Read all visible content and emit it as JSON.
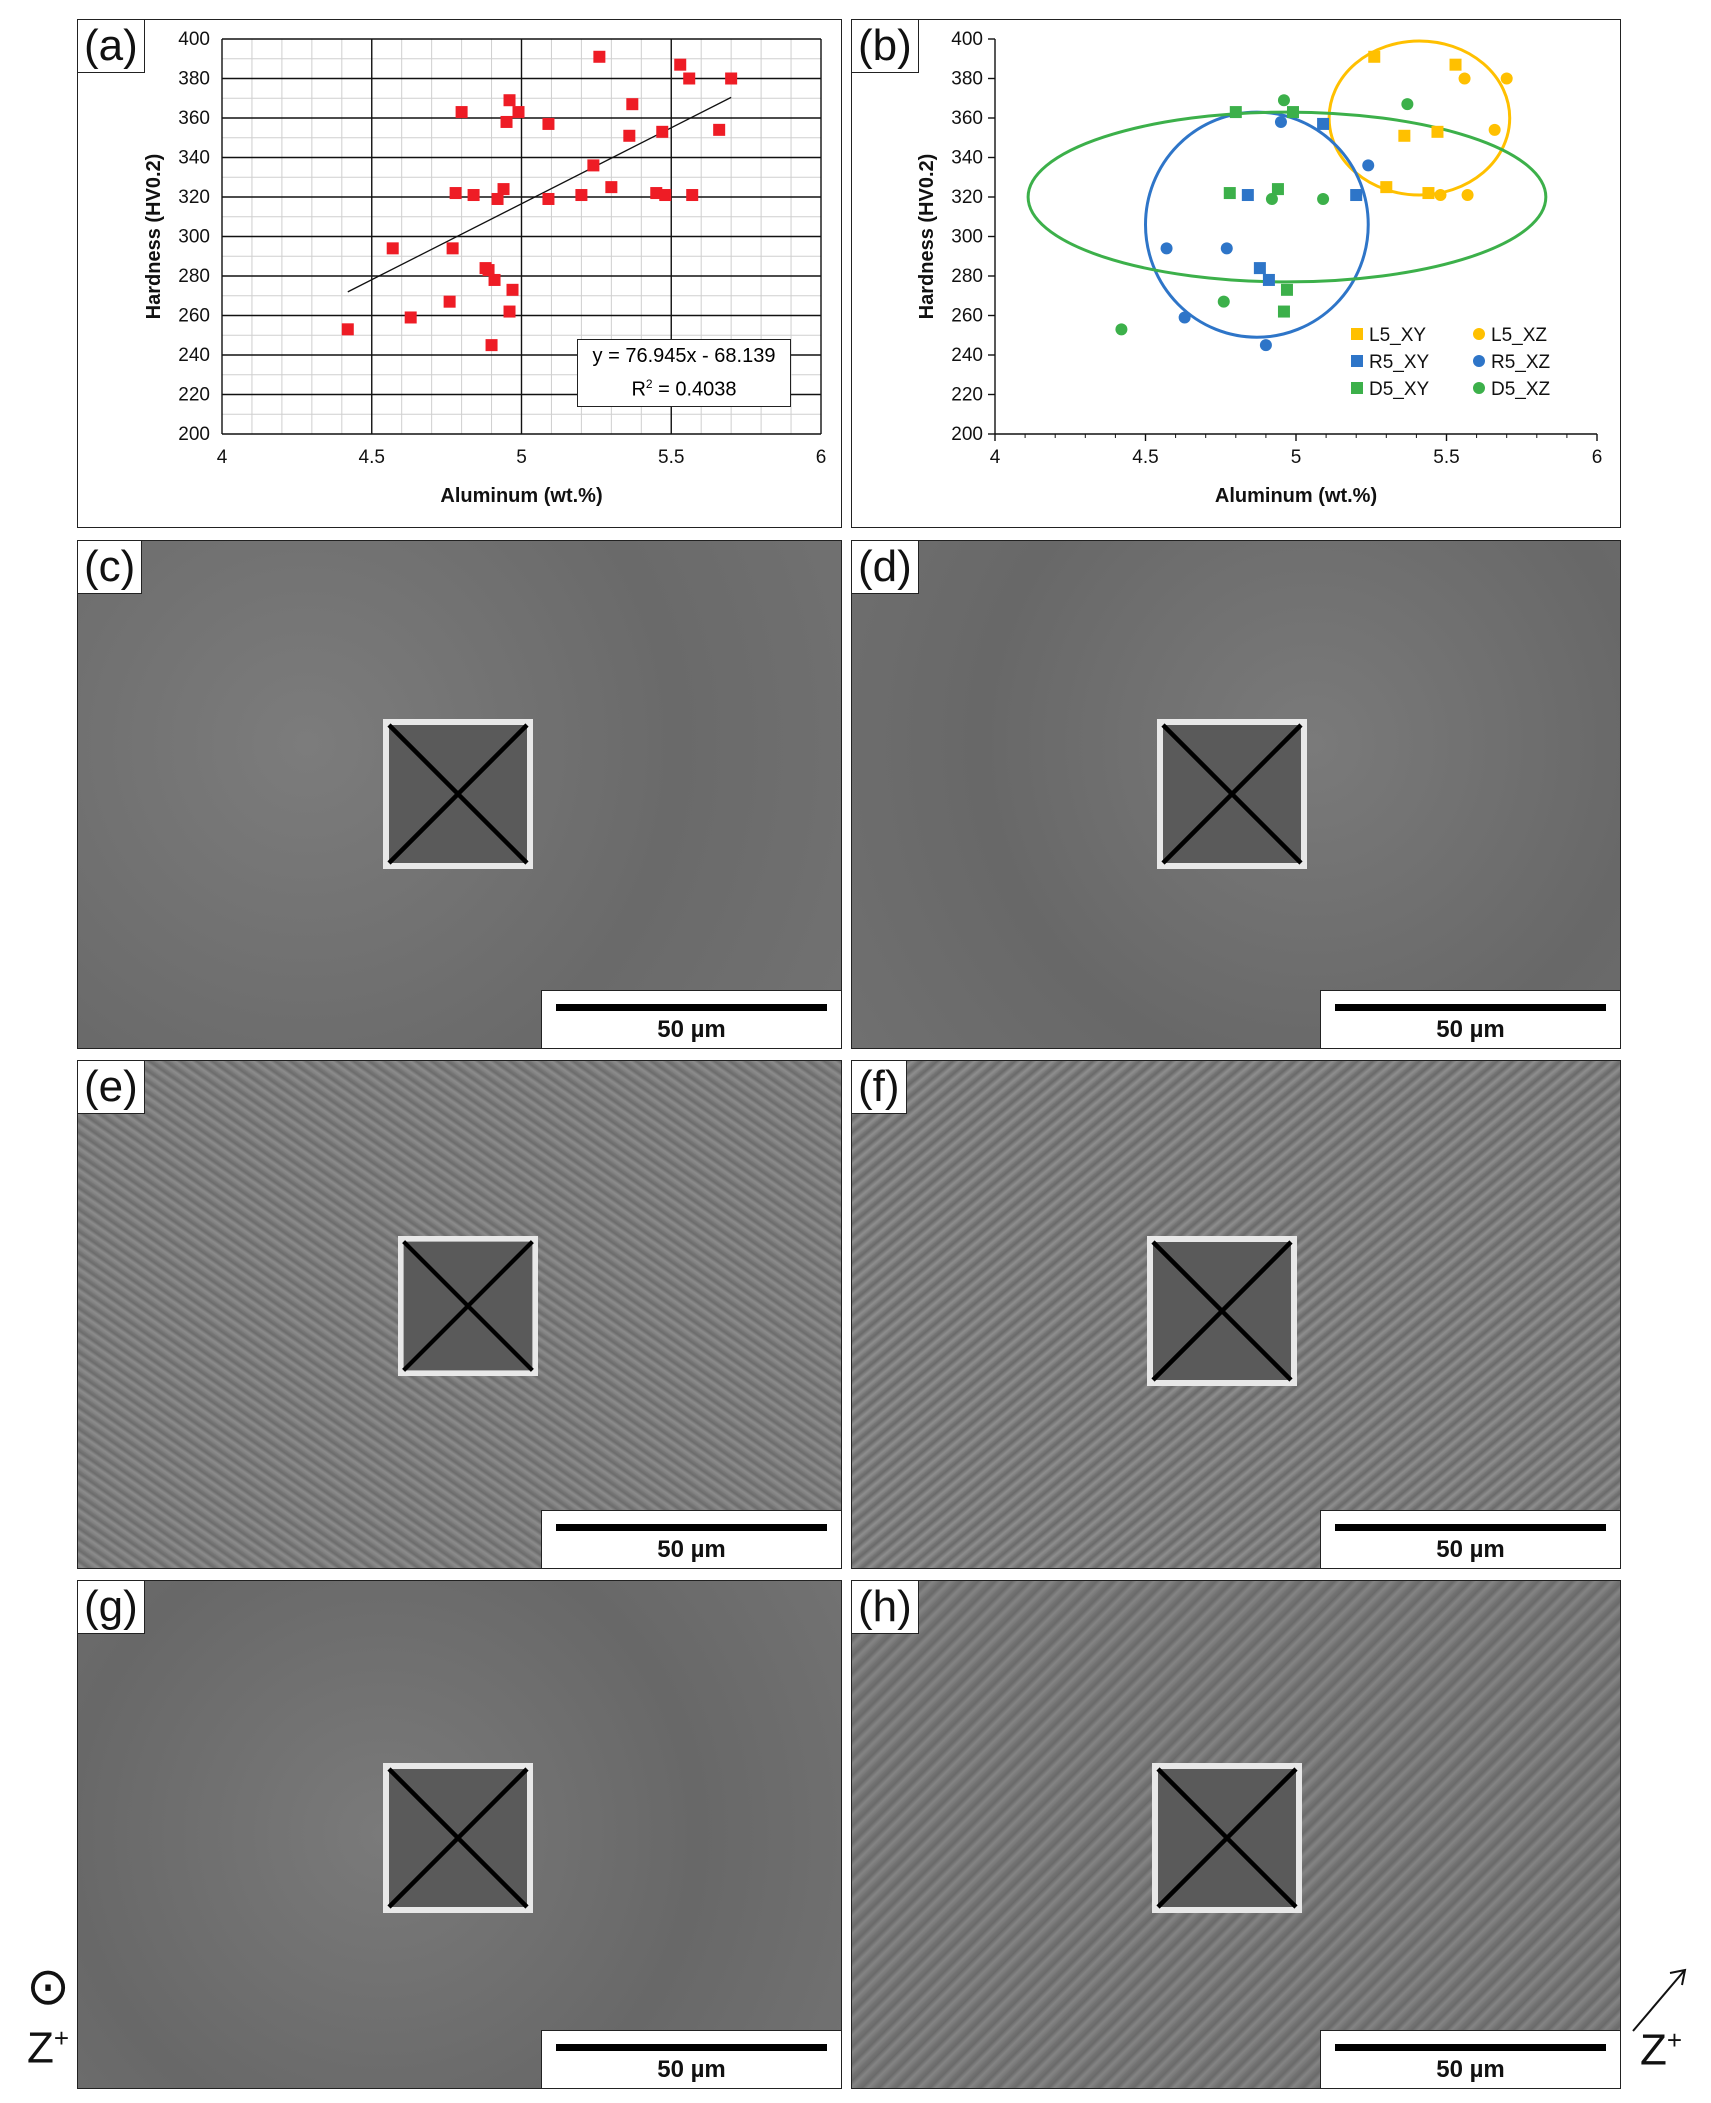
{
  "figure": {
    "panels": {
      "a": {
        "label": "(a)"
      },
      "b": {
        "label": "(b)"
      },
      "c": {
        "label": "(c)",
        "scale": "50 µm"
      },
      "d": {
        "label": "(d)",
        "scale": "50 µm"
      },
      "e": {
        "label": "(e)",
        "scale": "50 µm"
      },
      "f": {
        "label": "(f)",
        "scale": "50 µm"
      },
      "g": {
        "label": "(g)",
        "scale": "50 µm"
      },
      "h": {
        "label": "(h)",
        "scale": "50 µm"
      }
    },
    "direction_left": {
      "symbol": "⊙",
      "text": "Z",
      "sup": "+"
    },
    "direction_right": {
      "text": "Z",
      "sup": "+"
    },
    "regression": {
      "equation": "y = 76.945x - 68.139",
      "r2_label": "R",
      "r2_sup": "2",
      "r2_value": " = 0.4038"
    },
    "colors": {
      "red": "#ee1c25",
      "yellow": "#ffc000",
      "blue": "#2e75c8",
      "green": "#3cb04a"
    }
  },
  "chart_data": [
    {
      "type": "scatter",
      "panel": "(a)",
      "xlabel": "Aluminum (wt.%)",
      "ylabel": "Hardness (HV0.2)",
      "xlim": [
        4,
        6
      ],
      "ylim": [
        200,
        400
      ],
      "xticks": [
        4,
        4.5,
        5,
        5.5,
        6
      ],
      "yticks": [
        200,
        220,
        240,
        260,
        280,
        300,
        320,
        340,
        360,
        380,
        400
      ],
      "grid": true,
      "series": [
        {
          "points": [
            [
              4.42,
              253
            ],
            [
              4.57,
              294
            ],
            [
              4.63,
              259
            ],
            [
              4.76,
              267
            ],
            [
              4.77,
              294
            ],
            [
              4.78,
              322
            ],
            [
              4.8,
              363
            ],
            [
              4.84,
              321
            ],
            [
              4.88,
              284
            ],
            [
              4.89,
              283
            ],
            [
              4.9,
              245
            ],
            [
              4.91,
              278
            ],
            [
              4.92,
              319
            ],
            [
              4.94,
              324
            ],
            [
              4.95,
              358
            ],
            [
              4.96,
              262
            ],
            [
              4.96,
              369
            ],
            [
              4.97,
              273
            ],
            [
              4.99,
              363
            ],
            [
              5.09,
              357
            ],
            [
              5.09,
              319
            ],
            [
              5.2,
              321
            ],
            [
              5.24,
              336
            ],
            [
              5.26,
              391
            ],
            [
              5.3,
              325
            ],
            [
              5.36,
              351
            ],
            [
              5.37,
              367
            ],
            [
              5.45,
              322
            ],
            [
              5.47,
              353
            ],
            [
              5.48,
              321
            ],
            [
              5.53,
              387
            ],
            [
              5.56,
              380
            ],
            [
              5.57,
              321
            ],
            [
              5.66,
              354
            ],
            [
              5.7,
              380
            ]
          ]
        }
      ],
      "trendline": {
        "x": [
          4.42,
          5.7
        ],
        "slope": 76.945,
        "intercept": -68.139
      }
    },
    {
      "type": "scatter",
      "panel": "(b)",
      "xlabel": "Aluminum (wt.%)",
      "ylabel": "Hardness (HV0.2)",
      "xlim": [
        4,
        6
      ],
      "ylim": [
        200,
        400
      ],
      "xticks": [
        4,
        4.5,
        5,
        5.5,
        6
      ],
      "yticks": [
        200,
        220,
        240,
        260,
        280,
        300,
        320,
        340,
        360,
        380,
        400
      ],
      "grid": false,
      "legend_position": "bottom-right",
      "series": [
        {
          "name": "L5_XY",
          "color": "#ffc000",
          "marker": "square",
          "points": [
            [
              5.26,
              391
            ],
            [
              5.53,
              387
            ],
            [
              5.36,
              351
            ],
            [
              5.47,
              353
            ],
            [
              5.3,
              325
            ],
            [
              5.44,
              322
            ]
          ]
        },
        {
          "name": "L5_XZ",
          "color": "#ffc000",
          "marker": "circle",
          "points": [
            [
              5.56,
              380
            ],
            [
              5.7,
              380
            ],
            [
              5.66,
              354
            ],
            [
              5.48,
              321
            ],
            [
              5.57,
              321
            ]
          ]
        },
        {
          "name": "R5_XY",
          "color": "#2e75c8",
          "marker": "square",
          "points": [
            [
              5.09,
              357
            ],
            [
              4.84,
              321
            ],
            [
              4.88,
              284
            ],
            [
              4.91,
              278
            ],
            [
              5.2,
              321
            ]
          ]
        },
        {
          "name": "R5_XZ",
          "color": "#2e75c8",
          "marker": "circle",
          "points": [
            [
              4.95,
              358
            ],
            [
              5.24,
              336
            ],
            [
              4.57,
              294
            ],
            [
              4.77,
              294
            ],
            [
              4.63,
              259
            ],
            [
              4.9,
              245
            ]
          ]
        },
        {
          "name": "D5_XY",
          "color": "#3cb04a",
          "marker": "square",
          "points": [
            [
              4.8,
              363
            ],
            [
              4.99,
              363
            ],
            [
              4.78,
              322
            ],
            [
              4.94,
              324
            ],
            [
              4.97,
              273
            ],
            [
              4.96,
              262
            ]
          ]
        },
        {
          "name": "D5_XZ",
          "color": "#3cb04a",
          "marker": "circle",
          "points": [
            [
              4.96,
              369
            ],
            [
              5.37,
              367
            ],
            [
              4.92,
              319
            ],
            [
              5.09,
              319
            ],
            [
              4.76,
              267
            ],
            [
              4.42,
              253
            ]
          ]
        }
      ],
      "ellipses": [
        {
          "color": "#ffc000",
          "cx": 5.41,
          "cy": 360,
          "rx": 0.3,
          "ry": 39,
          "angle": 0
        },
        {
          "color": "#2e75c8",
          "cx": 4.87,
          "cy": 306,
          "rx": 0.37,
          "ry": 57,
          "angle": 0
        },
        {
          "color": "#3cb04a",
          "cx": 4.97,
          "cy": 320,
          "rx": 0.86,
          "ry": 43,
          "angle": 0
        }
      ]
    }
  ]
}
